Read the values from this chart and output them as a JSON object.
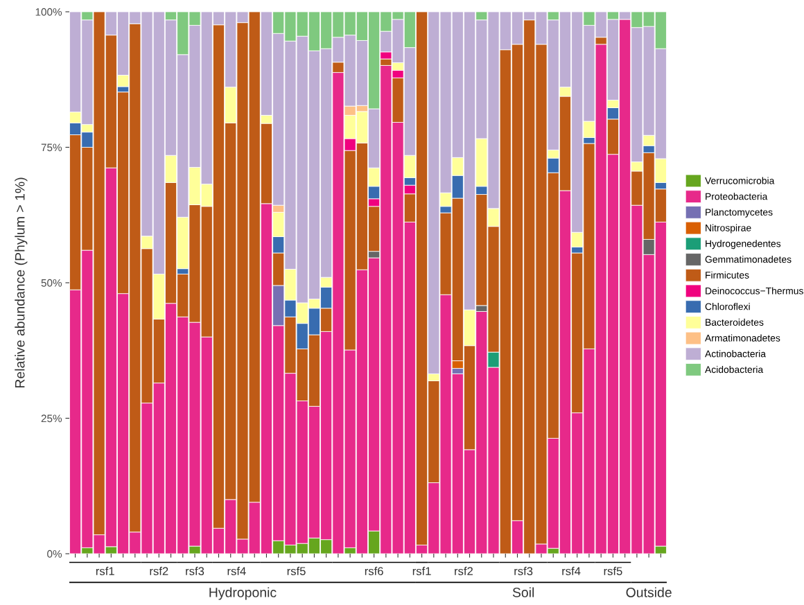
{
  "chart_data": {
    "type": "bar",
    "stacked": true,
    "ylabel": "Relative abundance (Phylum > 1%)",
    "categories": [
      null,
      null,
      null,
      null,
      null,
      null,
      null,
      null,
      null,
      null,
      null,
      null,
      null,
      null,
      null,
      null,
      null,
      null,
      null,
      null,
      null,
      null,
      null,
      null,
      null,
      null,
      null,
      null,
      null,
      null,
      null,
      null,
      null,
      null,
      null,
      null,
      null,
      null,
      null,
      null,
      null,
      null,
      null,
      null,
      null,
      null,
      null,
      null,
      null,
      null
    ],
    "ylim": [
      0,
      100
    ],
    "yticks": [
      {
        "value": 0,
        "label": "0%"
      },
      {
        "value": 25,
        "label": "25%"
      },
      {
        "value": 50,
        "label": "50%"
      },
      {
        "value": 75,
        "label": "75%"
      },
      {
        "value": 100,
        "label": "100%"
      }
    ],
    "tick_labels": "y",
    "grid": false,
    "legend": "right",
    "annotations": [
      "rsf1",
      "rsf2",
      "rsf3",
      "rsf4",
      "rsf5",
      "rsf6",
      "rsf1",
      "rsf2",
      "rsf3",
      "rsf4",
      "rsf5",
      "Hydroponic",
      "Soil",
      "Outside"
    ],
    "series": [
      {
        "name": "Verrucomicrobia",
        "color": "#66a61e",
        "values": [
          0,
          1.1,
          0,
          1.3,
          0,
          0,
          0,
          0,
          0,
          0,
          1.4,
          0,
          0,
          0,
          0,
          0,
          0,
          2.4,
          1.6,
          1.9,
          2.9,
          2.6,
          0,
          1.1,
          0,
          4.2,
          0,
          0,
          0,
          0,
          0,
          0,
          0,
          0,
          0,
          0,
          0,
          0,
          0,
          0,
          1.0,
          0,
          0,
          0,
          0,
          0,
          0,
          0,
          0,
          1.4
        ]
      },
      {
        "name": "Proteobacteria",
        "color": "#e7298a",
        "values": [
          48.7,
          54.9,
          3.5,
          69.9,
          48.0,
          4.0,
          27.8,
          31.5,
          46.2,
          43.7,
          41.3,
          40.0,
          4.7,
          10.0,
          2.7,
          9.5,
          64.6,
          39.7,
          31.7,
          26.3,
          24.3,
          38.4,
          88.8,
          36.5,
          52.4,
          50.4,
          90.1,
          79.6,
          61.2,
          1.6,
          13.1,
          47.8,
          33.2,
          19.2,
          44.7,
          34.4,
          0,
          6.1,
          0,
          1.8,
          20.3,
          67.0,
          26.0,
          37.8,
          94.0,
          73.7,
          98.6,
          64.3,
          55.2,
          59.8
        ]
      },
      {
        "name": "Planctomycetes",
        "color": "#7570b3",
        "values": [
          0,
          0,
          0,
          0,
          0,
          0,
          0,
          0,
          0,
          0,
          0,
          0,
          0,
          0,
          0,
          0,
          0,
          7.4,
          0,
          0,
          0,
          0,
          0,
          0,
          0,
          0,
          0,
          0,
          0,
          0,
          0,
          0,
          1.0,
          0,
          0,
          0,
          0,
          0,
          0,
          0,
          0,
          0,
          0,
          0,
          0,
          0,
          0,
          0,
          0,
          0
        ]
      },
      {
        "name": "Nitrospirae",
        "color": "#d95f02",
        "values": [
          0,
          0,
          0,
          0,
          0,
          0,
          0,
          0,
          0,
          0,
          0,
          0,
          0,
          0,
          0,
          0,
          0,
          0,
          0,
          0,
          0,
          0,
          0,
          0,
          0,
          0,
          0,
          0,
          0,
          0,
          0,
          0,
          1.4,
          0,
          0,
          0,
          0,
          0,
          0,
          0,
          0,
          0,
          0,
          0,
          0,
          0,
          0,
          0,
          0,
          0
        ]
      },
      {
        "name": "Hydrogenedentes",
        "color": "#1b9e77",
        "values": [
          0,
          0,
          0,
          0,
          0,
          0,
          0,
          0,
          0,
          0,
          0,
          0,
          0,
          0,
          0,
          0,
          0,
          0,
          0,
          0,
          0,
          0,
          0,
          0,
          0,
          0,
          0,
          0,
          0,
          0,
          0,
          0,
          0,
          0,
          0,
          2.8,
          0,
          0,
          0,
          0,
          0,
          0,
          0,
          0,
          0,
          0,
          0,
          0,
          0,
          0
        ]
      },
      {
        "name": "Gemmatimonadetes",
        "color": "#666666",
        "values": [
          0,
          0,
          0,
          0,
          0,
          0,
          0,
          0,
          0,
          0,
          0,
          0,
          0,
          0,
          0,
          0,
          0,
          0,
          0,
          0,
          0,
          0,
          0,
          0,
          0,
          1.2,
          0,
          0,
          0,
          0,
          0,
          0,
          0,
          0,
          1.1,
          0,
          0,
          0,
          0,
          0,
          0,
          0,
          0,
          0,
          0,
          0,
          0,
          0,
          2.8,
          0
        ]
      },
      {
        "name": "Firmicutes",
        "color": "#bf5b17",
        "values": [
          28.6,
          19.0,
          96.5,
          24.5,
          37.2,
          93.8,
          28.5,
          11.8,
          22.3,
          7.9,
          21.7,
          24.1,
          92.9,
          69.5,
          95.3,
          90.5,
          14.8,
          6.0,
          10.4,
          9.6,
          13.2,
          4.3,
          1.9,
          36.8,
          23.4,
          8.3,
          1.2,
          8.2,
          5.2,
          98.4,
          18.8,
          15.1,
          30.0,
          19.2,
          20.5,
          23.2,
          93.0,
          87.9,
          98.5,
          92.2,
          49.0,
          17.4,
          29.5,
          37.9,
          1.3,
          6.5,
          0,
          6.3,
          16.0,
          6.1
        ]
      },
      {
        "name": "Deinococcus−Thermus",
        "color": "#f0027f",
        "values": [
          0,
          0,
          0,
          0,
          0,
          0,
          0,
          0,
          0,
          0,
          0,
          0,
          0,
          0,
          0,
          0,
          0,
          0,
          0,
          0,
          0,
          0,
          0,
          2.2,
          0,
          1.4,
          1.3,
          1.4,
          1.6,
          0,
          0,
          0,
          0,
          0,
          0,
          0,
          0,
          0,
          0,
          0,
          0,
          0,
          0,
          0,
          0,
          0,
          0,
          0,
          0,
          0
        ]
      },
      {
        "name": "Chloroflexi",
        "color": "#386cb0",
        "values": [
          2.2,
          2.8,
          0,
          0,
          1.0,
          0,
          0,
          0,
          0,
          1.0,
          0,
          0,
          0,
          0,
          0,
          0,
          0,
          3.0,
          3.1,
          4.7,
          4.9,
          3.9,
          0,
          0,
          0,
          2.3,
          0,
          0,
          1.4,
          0,
          0,
          1.2,
          4.2,
          0,
          1.5,
          0,
          0,
          0,
          0,
          0,
          2.7,
          0,
          1.1,
          1.1,
          0,
          2.1,
          0,
          0,
          1.3,
          1.2
        ]
      },
      {
        "name": "Bacteroidetes",
        "color": "#ffff99",
        "values": [
          2.0,
          1.4,
          0,
          0,
          2.1,
          0,
          2.3,
          8.3,
          5.0,
          9.5,
          6.9,
          4.1,
          0,
          6.6,
          0,
          0,
          1.5,
          4.5,
          5.7,
          3.8,
          1.7,
          1.8,
          0,
          4.3,
          5.8,
          3.4,
          0,
          1.4,
          4.1,
          0,
          1.3,
          2.5,
          3.3,
          6.6,
          8.8,
          3.3,
          0,
          0,
          0,
          0,
          1.5,
          1.7,
          2.7,
          3.0,
          0,
          1.4,
          0,
          1.7,
          1.9,
          4.4
        ]
      },
      {
        "name": "Armatimonadetes",
        "color": "#fdc086",
        "values": [
          0,
          0,
          0,
          0,
          0,
          0,
          0,
          0,
          0,
          0,
          0,
          0,
          0,
          0,
          0,
          0,
          0,
          1.3,
          0,
          0,
          0,
          0,
          0,
          1.7,
          1.1,
          0,
          0,
          0,
          0,
          0,
          0,
          0,
          0,
          0,
          0,
          0,
          0,
          0,
          0,
          0,
          0,
          0,
          0,
          0,
          0,
          0,
          0,
          0,
          0,
          0
        ]
      },
      {
        "name": "Actinobacteria",
        "color": "#beaed4",
        "values": [
          18.5,
          19.3,
          0,
          4.3,
          11.7,
          2.2,
          41.4,
          48.4,
          25.0,
          30.0,
          26.2,
          31.8,
          2.4,
          13.9,
          2.0,
          0,
          19.1,
          31.7,
          42.1,
          49.2,
          45.8,
          42.2,
          4.6,
          13.1,
          12.0,
          10.9,
          3.8,
          8.0,
          19.9,
          0,
          66.8,
          33.4,
          26.9,
          55.0,
          21.9,
          36.3,
          7.0,
          6.0,
          1.5,
          6.0,
          24.0,
          13.9,
          40.7,
          17.7,
          4.7,
          14.9,
          1.4,
          24.8,
          20.1,
          20.3
        ]
      },
      {
        "name": "Acidobacteria",
        "color": "#7fc97f",
        "values": [
          0,
          1.5,
          0,
          0,
          0,
          0,
          0,
          0,
          1.5,
          7.9,
          2.5,
          0,
          0,
          0,
          0,
          0,
          0,
          4.0,
          5.4,
          4.5,
          7.2,
          6.8,
          4.7,
          4.3,
          5.3,
          17.9,
          3.6,
          1.4,
          6.6,
          0,
          0,
          0,
          0,
          0,
          1.5,
          0,
          0,
          0,
          0,
          0,
          1.5,
          0,
          0,
          2.5,
          0,
          1.4,
          0,
          2.9,
          2.7,
          6.8
        ]
      }
    ]
  }
}
